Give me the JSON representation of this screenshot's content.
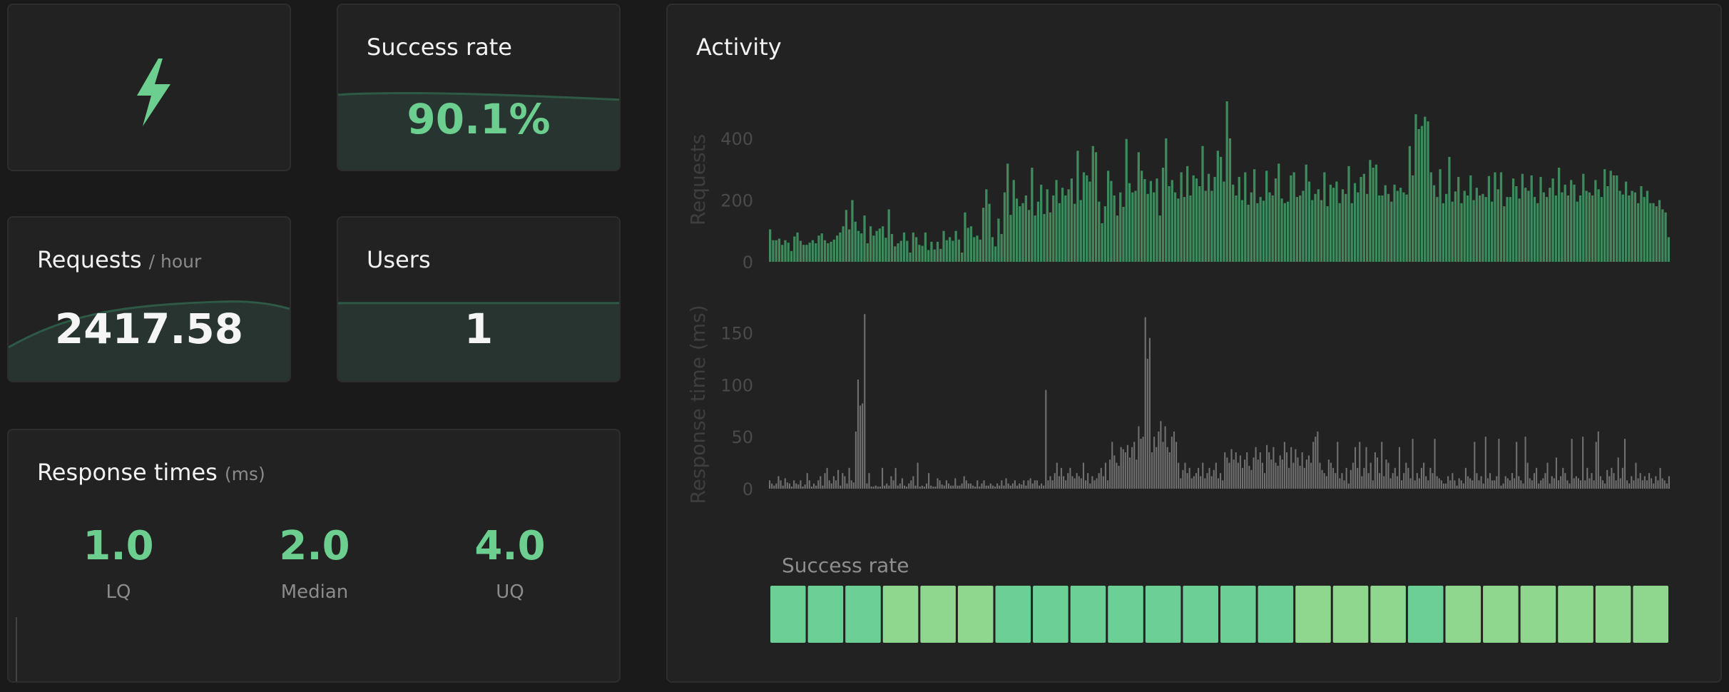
{
  "logo": {
    "icon": "lightning-bolt-icon",
    "color": "#6ccf8f"
  },
  "success_card": {
    "title": "Success rate",
    "value": "90.1%"
  },
  "requests_card": {
    "title": "Requests",
    "unit": "/ hour",
    "value": "2417.58"
  },
  "users_card": {
    "title": "Users",
    "value": "1"
  },
  "response_card": {
    "title": "Response times",
    "unit": "(ms)",
    "stats": [
      {
        "value": "1.0",
        "label": "LQ"
      },
      {
        "value": "2.0",
        "label": "Median"
      },
      {
        "value": "4.0",
        "label": "UQ"
      }
    ]
  },
  "activity": {
    "title": "Activity"
  },
  "colors": {
    "accent": "#6ccf8f",
    "requests_bar": "#3e8a5d",
    "response_bar": "#707070",
    "success_high": "#6ccf95",
    "success_mid": "#8fd68f"
  },
  "chart_data": [
    {
      "type": "bar",
      "ylabel": "Requests",
      "ylim": [
        0,
        520
      ],
      "yticks": [
        "0",
        "200",
        "400"
      ],
      "grid": false,
      "values": [
        105,
        70,
        70,
        75,
        55,
        70,
        62,
        35,
        82,
        95,
        68,
        55,
        55,
        62,
        70,
        60,
        85,
        92,
        70,
        60,
        65,
        72,
        85,
        95,
        115,
        168,
        105,
        200,
        130,
        100,
        92,
        150,
        60,
        115,
        85,
        100,
        108,
        115,
        78,
        170,
        90,
        50,
        60,
        68,
        95,
        68,
        30,
        95,
        80,
        55,
        52,
        95,
        38,
        65,
        40,
        65,
        42,
        100,
        70,
        80,
        68,
        100,
        72,
        30,
        160,
        110,
        115,
        80,
        85,
        72,
        175,
        235,
        188,
        80,
        50,
        140,
        90,
        225,
        318,
        152,
        265,
        205,
        180,
        190,
        215,
        168,
        305,
        150,
        195,
        250,
        155,
        235,
        160,
        215,
        265,
        190,
        240,
        215,
        235,
        270,
        188,
        360,
        200,
        290,
        280,
        260,
        375,
        355,
        195,
        125,
        180,
        295,
        262,
        215,
        150,
        225,
        178,
        398,
        255,
        225,
        230,
        355,
        295,
        268,
        220,
        262,
        225,
        270,
        150,
        305,
        400,
        245,
        265,
        225,
        205,
        290,
        210,
        310,
        215,
        280,
        270,
        245,
        375,
        230,
        285,
        230,
        275,
        360,
        340,
        260,
        520,
        400,
        250,
        215,
        275,
        200,
        290,
        185,
        225,
        300,
        190,
        210,
        198,
        295,
        225,
        215,
        270,
        318,
        205,
        190,
        195,
        280,
        290,
        210,
        215,
        230,
        315,
        260,
        200,
        220,
        235,
        200,
        290,
        180,
        250,
        240,
        260,
        190,
        235,
        220,
        310,
        190,
        255,
        225,
        275,
        285,
        220,
        330,
        305,
        315,
        215,
        215,
        248,
        220,
        195,
        250,
        230,
        240,
        225,
        218,
        375,
        280,
        478,
        430,
        440,
        470,
        455,
        290,
        248,
        210,
        300,
        190,
        220,
        340,
        195,
        228,
        275,
        190,
        230,
        215,
        280,
        200,
        240,
        215,
        220,
        210,
        278,
        195,
        290,
        235,
        290,
        180,
        210,
        210,
        270,
        245,
        205,
        285,
        240,
        230,
        280,
        210,
        190,
        275,
        225,
        210,
        240,
        270,
        215,
        305,
        225,
        250,
        215,
        265,
        250,
        195,
        215,
        285,
        230,
        225,
        215,
        265,
        235,
        210,
        300,
        245,
        295,
        280,
        280,
        230,
        218,
        260,
        215,
        230,
        225,
        190,
        245,
        210,
        230,
        190,
        190,
        180,
        200,
        170,
        160,
        80
      ]
    },
    {
      "type": "bar",
      "ylabel": "Response time (ms)",
      "ylim": [
        0,
        175
      ],
      "yticks": [
        "0",
        "50",
        "100",
        "150"
      ],
      "grid": false,
      "values": [
        8,
        5,
        3,
        5,
        12,
        8,
        3,
        10,
        6,
        5,
        2,
        8,
        5,
        4,
        8,
        2,
        4,
        15,
        8,
        2,
        5,
        3,
        8,
        12,
        3,
        15,
        20,
        8,
        5,
        12,
        8,
        18,
        3,
        15,
        12,
        5,
        20,
        8,
        6,
        55,
        105,
        80,
        82,
        168,
        5,
        15,
        2,
        2,
        3,
        2,
        2,
        20,
        3,
        5,
        3,
        12,
        8,
        20,
        3,
        5,
        10,
        3,
        2,
        5,
        8,
        12,
        3,
        25,
        2,
        3,
        2,
        5,
        15,
        3,
        2,
        2,
        10,
        8,
        4,
        3,
        8,
        5,
        3,
        3,
        10,
        3,
        3,
        5,
        12,
        8,
        5,
        5,
        3,
        2,
        8,
        2,
        5,
        8,
        3,
        3,
        5,
        3,
        2,
        5,
        3,
        8,
        3,
        10,
        5,
        3,
        5,
        8,
        3,
        5,
        4,
        8,
        3,
        8,
        10,
        5,
        8,
        8,
        3,
        5,
        3,
        95,
        8,
        12,
        8,
        15,
        25,
        12,
        20,
        12,
        8,
        15,
        20,
        12,
        10,
        15,
        12,
        10,
        25,
        8,
        15,
        5,
        12,
        8,
        10,
        15,
        20,
        12,
        25,
        8,
        28,
        45,
        32,
        25,
        22,
        40,
        38,
        35,
        42,
        30,
        40,
        45,
        28,
        60,
        48,
        50,
        165,
        125,
        145,
        35,
        50,
        40,
        55,
        65,
        45,
        60,
        40,
        35,
        50,
        55,
        45,
        25,
        10,
        18,
        25,
        15,
        20,
        10,
        12,
        15,
        20,
        12,
        25,
        10,
        15,
        20,
        12,
        18,
        25,
        10,
        15,
        8,
        35,
        30,
        25,
        38,
        28,
        35,
        25,
        32,
        20,
        28,
        35,
        22,
        18,
        30,
        40,
        28,
        35,
        25,
        15,
        42,
        35,
        28,
        40,
        25,
        22,
        32,
        28,
        45,
        35,
        20,
        40,
        25,
        38,
        30,
        22,
        35,
        20,
        28,
        32,
        25,
        45,
        50,
        55,
        25,
        18,
        15,
        12,
        28,
        25,
        20,
        15,
        45,
        10,
        15,
        8,
        20,
        5,
        18,
        25,
        40,
        20,
        45,
        12,
        20,
        40,
        15,
        25,
        8,
        35,
        30,
        15,
        45,
        12,
        28,
        25,
        10,
        15,
        20,
        12,
        40,
        8,
        15,
        25,
        20,
        10,
        48,
        8,
        15,
        10,
        20,
        25,
        12,
        8,
        20,
        15,
        48,
        12,
        10,
        8,
        5,
        5,
        12,
        8,
        15,
        8,
        3,
        10,
        8,
        5,
        20,
        12,
        10,
        8,
        45,
        15,
        8,
        12,
        5,
        50,
        10,
        15,
        8,
        8,
        12,
        48,
        3,
        5,
        12,
        10,
        8,
        15,
        10,
        45,
        12,
        8,
        5,
        50,
        25,
        10,
        8,
        15,
        20,
        5,
        8,
        10,
        15,
        25,
        5,
        12,
        10,
        30,
        8,
        12,
        20,
        15,
        8,
        5,
        48,
        10,
        12,
        10,
        8,
        50,
        8,
        20,
        10,
        15,
        8,
        45,
        55,
        12,
        8,
        5,
        18,
        12,
        20,
        15,
        8,
        30,
        10,
        20,
        48,
        8,
        5,
        12,
        8,
        25,
        10,
        15,
        8,
        12,
        8,
        15,
        10,
        5,
        12,
        8,
        20,
        10,
        8,
        5,
        12
      ]
    },
    {
      "type": "heatmap",
      "title": "Success rate",
      "values": [
        1,
        1,
        1,
        0,
        0,
        0,
        1,
        1,
        1,
        1,
        1,
        1,
        1,
        1,
        0,
        0,
        0,
        1,
        0,
        0,
        0,
        0,
        0,
        0
      ]
    }
  ]
}
